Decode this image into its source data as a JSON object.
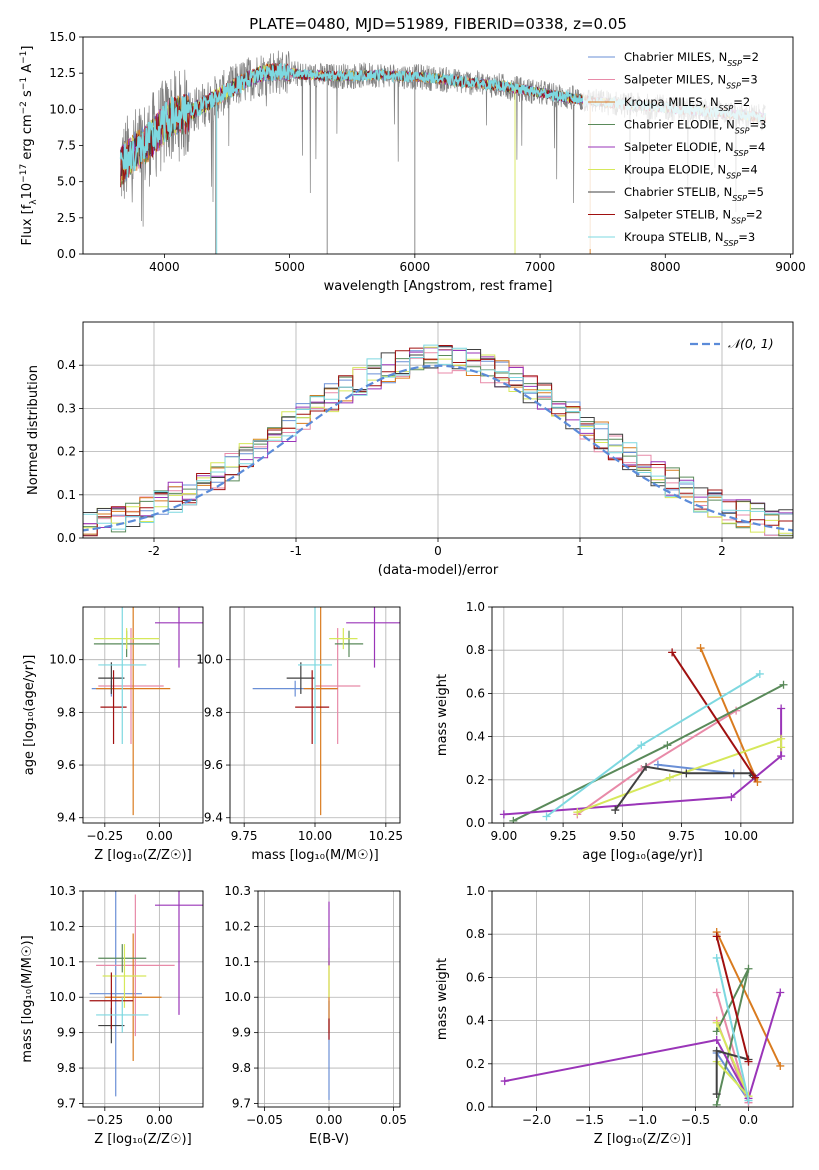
{
  "colors": {
    "chabrier_miles": "#6a8fd6",
    "salpeter_miles": "#e88aa8",
    "kroupa_miles": "#d97b1f",
    "chabrier_elodie": "#5a8a5a",
    "salpeter_elodie": "#9a35b8",
    "kroupa_elodie": "#d6e85a",
    "chabrier_stelib": "#404040",
    "salpeter_stelib": "#a01010",
    "kroupa_stelib": "#7dd8e0",
    "data": "#808080",
    "normal": "#5b8bd9"
  },
  "chart_data": [
    {
      "id": "spectrum",
      "type": "line",
      "title": "PLATE=0480, MJD=51989, FIBERID=0338, z=0.05",
      "xlabel": "wavelength [Angstrom, rest frame]",
      "ylabel_parts": [
        "Flux [f",
        "λ",
        "10",
        "−17",
        " erg cm",
        "−2",
        " s",
        "−1",
        " A",
        "−1",
        "]"
      ],
      "xlim": [
        3350,
        9020
      ],
      "ylim": [
        0,
        15
      ],
      "xticks": [
        4000,
        5000,
        6000,
        7000,
        8000,
        9000
      ],
      "yticks": [
        0.0,
        2.5,
        5.0,
        7.5,
        10.0,
        12.5,
        15.0
      ],
      "legend_position": "right",
      "legend": [
        {
          "label": "Chabrier MILES, N",
          "sub": "SSP",
          "eq": "=2",
          "color": "chabrier_miles"
        },
        {
          "label": "Salpeter MILES, N",
          "sub": "SSP",
          "eq": "=3",
          "color": "salpeter_miles"
        },
        {
          "label": "Kroupa MILES, N",
          "sub": "SSP",
          "eq": "=2",
          "color": "kroupa_miles"
        },
        {
          "label": "Chabrier ELODIE, N",
          "sub": "SSP",
          "eq": "=3",
          "color": "chabrier_elodie"
        },
        {
          "label": "Salpeter ELODIE, N",
          "sub": "SSP",
          "eq": "=4",
          "color": "salpeter_elodie"
        },
        {
          "label": "Kroupa ELODIE, N",
          "sub": "SSP",
          "eq": "=4",
          "color": "kroupa_elodie"
        },
        {
          "label": "Chabrier STELIB, N",
          "sub": "SSP",
          "eq": "=5",
          "color": "chabrier_stelib"
        },
        {
          "label": "Salpeter STELIB, N",
          "sub": "SSP",
          "eq": "=2",
          "color": "salpeter_stelib"
        },
        {
          "label": "Kroupa STELIB, N",
          "sub": "SSP",
          "eq": "=3",
          "color": "kroupa_stelib"
        }
      ],
      "continuum": [
        [
          3650,
          6.0
        ],
        [
          3750,
          7.0
        ],
        [
          3850,
          7.5
        ],
        [
          3950,
          8.5
        ],
        [
          4050,
          9.5
        ],
        [
          4150,
          9.6
        ],
        [
          4250,
          10.0
        ],
        [
          4350,
          10.5
        ],
        [
          4450,
          11.0
        ],
        [
          4550,
          11.5
        ],
        [
          4650,
          12.0
        ],
        [
          4750,
          12.4
        ],
        [
          4850,
          12.6
        ],
        [
          4950,
          12.6
        ],
        [
          5100,
          12.4
        ],
        [
          5300,
          12.3
        ],
        [
          5500,
          12.3
        ],
        [
          5700,
          12.4
        ],
        [
          5900,
          12.3
        ],
        [
          6100,
          12.2
        ],
        [
          6300,
          12.0
        ],
        [
          6500,
          11.8
        ],
        [
          6700,
          11.6
        ],
        [
          6900,
          11.3
        ],
        [
          7100,
          11.0
        ],
        [
          7300,
          10.7
        ],
        [
          7500,
          10.5
        ],
        [
          7700,
          10.3
        ],
        [
          7900,
          10.2
        ],
        [
          8100,
          10.0
        ],
        [
          8300,
          9.9
        ],
        [
          8500,
          9.7
        ],
        [
          8700,
          9.5
        ],
        [
          8800,
          9.4
        ]
      ],
      "data_span": [
        3650,
        8800
      ],
      "model_span": [
        3650,
        8800
      ],
      "drop_lines": [
        {
          "x": 4410,
          "color": "data"
        },
        {
          "x": 4418,
          "color": "kroupa_stelib"
        },
        {
          "x": 5300,
          "color": "data"
        },
        {
          "x": 6000,
          "color": "data"
        },
        {
          "x": 6800,
          "color": "kroupa_elodie"
        },
        {
          "x": 7400,
          "color": "kroupa_miles"
        }
      ]
    },
    {
      "id": "residuals",
      "type": "step-histogram",
      "xlabel": "(data-model)/error",
      "ylabel": "Normed distribution",
      "xlim": [
        -2.5,
        2.5
      ],
      "ylim": [
        0,
        0.5
      ],
      "xticks": [
        -2,
        -1,
        0,
        1,
        2
      ],
      "yticks": [
        0.0,
        0.1,
        0.2,
        0.3,
        0.4
      ],
      "bin_width": 0.1,
      "legend_position": "top-right",
      "legend": {
        "label": "𝒩(0, 1)",
        "color": "normal",
        "style": "dashed"
      },
      "normal": {
        "mean": 0,
        "sigma": 1
      }
    },
    {
      "id": "age_vs_Z",
      "type": "errorbar",
      "xlabel": "Z [log₁₀(Z/Z☉)]",
      "ylabel": "age  [log₁₀(age/yr)]",
      "xlim": [
        -0.35,
        0.2
      ],
      "ylim": [
        9.38,
        10.2
      ],
      "xticks": [
        -0.25,
        0.0
      ],
      "xticklabels": [
        "−0.25",
        "0.00"
      ],
      "yticks": [
        9.4,
        9.6,
        9.8,
        10.0
      ],
      "yticklabels": [
        "9.4",
        "9.6",
        "9.8",
        "10.0"
      ],
      "points": [
        {
          "x": -0.22,
          "xerr": 0.09,
          "y": 9.89,
          "yerr": 0.03,
          "color": "chabrier_miles"
        },
        {
          "x": -0.13,
          "xerr": 0.15,
          "y": 9.9,
          "yerr": 0.22,
          "color": "salpeter_miles"
        },
        {
          "x": -0.12,
          "xerr": 0.17,
          "y": 9.89,
          "yerr": 0.48,
          "color": "kroupa_miles"
        },
        {
          "x": -0.15,
          "xerr": 0.15,
          "y": 10.06,
          "yerr": 0.05,
          "color": "chabrier_elodie"
        },
        {
          "x": 0.09,
          "xerr": 0.11,
          "y": 10.14,
          "yerr": 0.17,
          "color": "salpeter_elodie"
        },
        {
          "x": -0.15,
          "xerr": 0.15,
          "y": 10.08,
          "yerr": 0.04,
          "color": "kroupa_elodie"
        },
        {
          "x": -0.22,
          "xerr": 0.06,
          "y": 9.93,
          "yerr": 0.06,
          "color": "chabrier_stelib"
        },
        {
          "x": -0.21,
          "xerr": 0.06,
          "y": 9.82,
          "yerr": 0.14,
          "color": "salpeter_stelib"
        },
        {
          "x": -0.17,
          "xerr": 0.11,
          "y": 9.98,
          "yerr": 0.3,
          "color": "kroupa_stelib"
        }
      ]
    },
    {
      "id": "age_vs_mass",
      "type": "errorbar",
      "xlabel": "mass [log₁₀(M/M☉)]",
      "xlim": [
        9.7,
        10.3
      ],
      "ylim": [
        9.38,
        10.2
      ],
      "xticks": [
        9.75,
        10.0,
        10.25
      ],
      "xticklabels": [
        "9.75",
        "10.00",
        "10.25"
      ],
      "yticks": [
        9.4,
        9.6,
        9.8,
        10.0
      ],
      "yticklabels": [
        "9.4",
        "9.6",
        "9.8",
        "10.0"
      ],
      "points": [
        {
          "x": 9.93,
          "xerr": 0.15,
          "y": 9.89,
          "yerr": 0.03,
          "color": "chabrier_miles"
        },
        {
          "x": 10.08,
          "xerr": 0.08,
          "y": 9.9,
          "yerr": 0.22,
          "color": "salpeter_miles"
        },
        {
          "x": 10.02,
          "xerr": 0.06,
          "y": 9.89,
          "yerr": 0.48,
          "color": "kroupa_miles"
        },
        {
          "x": 10.12,
          "xerr": 0.05,
          "y": 10.06,
          "yerr": 0.05,
          "color": "chabrier_elodie"
        },
        {
          "x": 10.21,
          "xerr": 0.1,
          "y": 10.14,
          "yerr": 0.17,
          "color": "salpeter_elodie"
        },
        {
          "x": 10.1,
          "xerr": 0.05,
          "y": 10.08,
          "yerr": 0.04,
          "color": "kroupa_elodie"
        },
        {
          "x": 9.95,
          "xerr": 0.05,
          "y": 9.93,
          "yerr": 0.06,
          "color": "chabrier_stelib"
        },
        {
          "x": 9.99,
          "xerr": 0.06,
          "y": 9.82,
          "yerr": 0.14,
          "color": "salpeter_stelib"
        },
        {
          "x": 10.0,
          "xerr": 0.06,
          "y": 9.98,
          "yerr": 0.3,
          "color": "kroupa_stelib"
        }
      ]
    },
    {
      "id": "weight_vs_age",
      "type": "line",
      "xlabel": "age  [log₁₀(age/yr)]",
      "ylabel": "mass weight",
      "xlim": [
        8.95,
        10.22
      ],
      "ylim": [
        0,
        1
      ],
      "xticks": [
        9.0,
        9.25,
        9.5,
        9.75,
        10.0
      ],
      "xticklabels": [
        "9.00",
        "9.25",
        "9.50",
        "9.75",
        "10.00"
      ],
      "yticks": [
        0.0,
        0.2,
        0.4,
        0.6,
        0.8,
        1.0
      ],
      "series": [
        {
          "color": "chabrier_miles",
          "points": [
            [
              9.65,
              0.27
            ],
            [
              9.97,
              0.23
            ]
          ]
        },
        {
          "color": "salpeter_miles",
          "points": [
            [
              9.31,
              0.04
            ],
            [
              9.58,
              0.25
            ],
            [
              9.98,
              0.52
            ]
          ]
        },
        {
          "color": "kroupa_miles",
          "points": [
            [
              9.83,
              0.81
            ],
            [
              10.07,
              0.19
            ]
          ]
        },
        {
          "color": "chabrier_elodie",
          "points": [
            [
              9.04,
              0.01
            ],
            [
              9.69,
              0.36
            ],
            [
              10.18,
              0.64
            ]
          ]
        },
        {
          "color": "salpeter_elodie",
          "points": [
            [
              9.0,
              0.04
            ],
            [
              9.96,
              0.12
            ],
            [
              10.17,
              0.31
            ],
            [
              10.17,
              0.53
            ]
          ]
        },
        {
          "color": "kroupa_elodie",
          "points": [
            [
              9.31,
              0.05
            ],
            [
              9.7,
              0.21
            ],
            [
              10.17,
              0.39
            ],
            [
              10.17,
              0.35
            ]
          ]
        },
        {
          "color": "chabrier_stelib",
          "points": [
            [
              9.47,
              0.06
            ],
            [
              9.6,
              0.26
            ],
            [
              9.77,
              0.23
            ],
            [
              10.04,
              0.23
            ],
            [
              10.05,
              0.22
            ]
          ]
        },
        {
          "color": "salpeter_stelib",
          "points": [
            [
              9.71,
              0.79
            ],
            [
              10.06,
              0.21
            ]
          ]
        },
        {
          "color": "kroupa_stelib",
          "points": [
            [
              9.18,
              0.03
            ],
            [
              9.58,
              0.36
            ],
            [
              10.08,
              0.69
            ]
          ]
        }
      ]
    },
    {
      "id": "mass_vs_Z",
      "type": "errorbar",
      "xlabel": "Z [log₁₀(Z/Z☉)]",
      "ylabel": "mass [log₁₀(M/M☉)]",
      "xlim": [
        -0.35,
        0.2
      ],
      "ylim": [
        9.69,
        10.3
      ],
      "xticks": [
        -0.25,
        0.0
      ],
      "xticklabels": [
        "−0.25",
        "0.00"
      ],
      "yticks": [
        9.7,
        9.8,
        9.9,
        10.0,
        10.1,
        10.2,
        10.3
      ],
      "yticklabels": [
        "9.7",
        "9.8",
        "9.9",
        "10.0",
        "10.1",
        "10.2",
        "10.3"
      ],
      "points": [
        {
          "x": -0.2,
          "xerr": 0.12,
          "y": 10.01,
          "yerr": 0.29,
          "color": "chabrier_miles"
        },
        {
          "x": -0.11,
          "xerr": 0.18,
          "y": 10.09,
          "yerr": 0.2,
          "color": "salpeter_miles"
        },
        {
          "x": -0.12,
          "xerr": 0.13,
          "y": 10.0,
          "yerr": 0.18,
          "color": "kroupa_miles"
        },
        {
          "x": -0.17,
          "xerr": 0.11,
          "y": 10.11,
          "yerr": 0.04,
          "color": "chabrier_elodie"
        },
        {
          "x": 0.09,
          "xerr": 0.11,
          "y": 10.26,
          "yerr": 0.31,
          "color": "salpeter_elodie"
        },
        {
          "x": -0.16,
          "xerr": 0.1,
          "y": 10.06,
          "yerr": 0.09,
          "color": "kroupa_elodie"
        },
        {
          "x": -0.22,
          "xerr": 0.06,
          "y": 9.92,
          "yerr": 0.05,
          "color": "chabrier_stelib"
        },
        {
          "x": -0.22,
          "xerr": 0.1,
          "y": 9.99,
          "yerr": 0.08,
          "color": "salpeter_stelib"
        },
        {
          "x": -0.17,
          "xerr": 0.12,
          "y": 9.95,
          "yerr": 0.05,
          "color": "kroupa_stelib"
        }
      ]
    },
    {
      "id": "mass_vs_ebv",
      "type": "errorbar",
      "xlabel": "E(B-V)",
      "xlim": [
        -0.055,
        0.055
      ],
      "ylim": [
        9.69,
        10.3
      ],
      "xticks": [
        -0.05,
        0.0,
        0.05
      ],
      "xticklabels": [
        "−0.05",
        "0.00",
        "0.05"
      ],
      "yticks": [
        9.7,
        9.8,
        9.9,
        10.0,
        10.1,
        10.2,
        10.3
      ],
      "yticklabels": [
        "9.7",
        "9.8",
        "9.9",
        "10.0",
        "10.1",
        "10.2",
        "10.3"
      ],
      "points": [
        {
          "x": 0,
          "xerr": 0,
          "y": 9.85,
          "yerr": 0.14,
          "color": "chabrier_miles"
        },
        {
          "x": 0,
          "xerr": 0,
          "y": 10.0,
          "yerr": 0.1,
          "color": "kroupa_miles"
        },
        {
          "x": 0,
          "xerr": 0,
          "y": 10.07,
          "yerr": 0.07,
          "color": "kroupa_elodie"
        },
        {
          "x": 0,
          "xerr": 0,
          "y": 10.18,
          "yerr": 0.09,
          "color": "salpeter_elodie"
        },
        {
          "x": 0,
          "xerr": 0,
          "y": 9.91,
          "yerr": 0.03,
          "color": "salpeter_stelib"
        }
      ]
    },
    {
      "id": "weight_vs_Z",
      "type": "line",
      "xlabel": "Z [log₁₀(Z/Z☉)]",
      "ylabel": "mass weight",
      "xlim": [
        -2.42,
        0.42
      ],
      "ylim": [
        0,
        1
      ],
      "xticks": [
        -2.0,
        -1.5,
        -1.0,
        -0.5,
        0.0
      ],
      "xticklabels": [
        "−2.0",
        "−1.5",
        "−1.0",
        "−0.5",
        "0.0"
      ],
      "yticks": [
        0.0,
        0.2,
        0.4,
        0.6,
        0.8,
        1.0
      ],
      "series": [
        {
          "color": "chabrier_miles",
          "points": [
            [
              -0.3,
              0.25
            ],
            [
              0.0,
              0.03
            ]
          ]
        },
        {
          "color": "salpeter_miles",
          "points": [
            [
              -0.3,
              0.53
            ],
            [
              0.0,
              0.02
            ],
            [
              -0.3,
              0.4
            ]
          ]
        },
        {
          "color": "kroupa_miles",
          "points": [
            [
              -0.3,
              0.81
            ],
            [
              0.3,
              0.19
            ]
          ]
        },
        {
          "color": "chabrier_elodie",
          "points": [
            [
              -0.3,
              0.01
            ],
            [
              0.0,
              0.64
            ],
            [
              -0.3,
              0.35
            ]
          ]
        },
        {
          "color": "salpeter_elodie",
          "points": [
            [
              -2.3,
              0.12
            ],
            [
              -0.3,
              0.31
            ],
            [
              0.0,
              0.04
            ],
            [
              0.3,
              0.53
            ]
          ]
        },
        {
          "color": "kroupa_elodie",
          "points": [
            [
              -0.3,
              0.39
            ],
            [
              0.0,
              0.05
            ],
            [
              -0.3,
              0.21
            ]
          ]
        },
        {
          "color": "chabrier_stelib",
          "points": [
            [
              -0.3,
              0.06
            ],
            [
              -0.3,
              0.26
            ],
            [
              0.0,
              0.22
            ]
          ]
        },
        {
          "color": "salpeter_stelib",
          "points": [
            [
              -0.3,
              0.79
            ],
            [
              0.0,
              0.21
            ]
          ]
        },
        {
          "color": "kroupa_stelib",
          "points": [
            [
              -0.3,
              0.69
            ],
            [
              0.0,
              0.03
            ]
          ]
        }
      ]
    }
  ]
}
